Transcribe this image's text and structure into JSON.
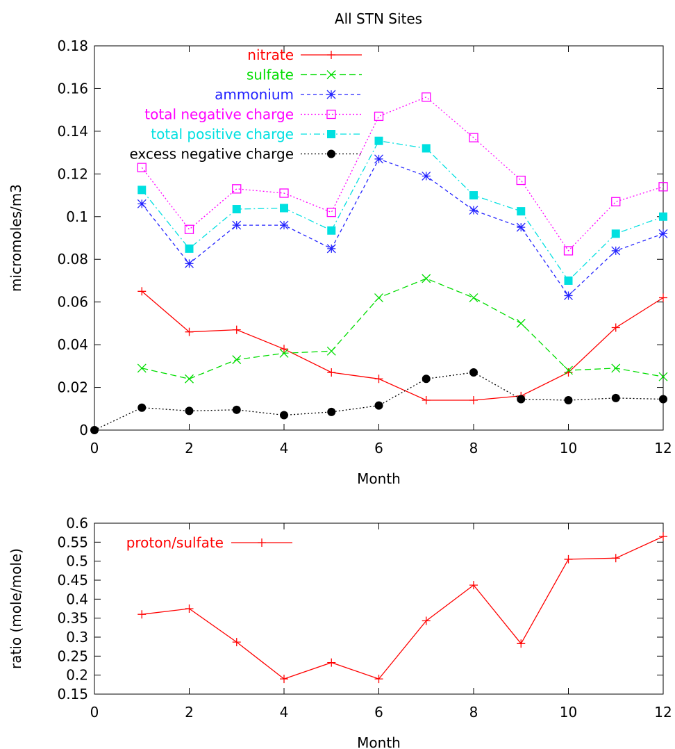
{
  "chart_data": [
    {
      "type": "line",
      "title": "All STN Sites",
      "xlabel": "Month",
      "ylabel": "micromoles/m3",
      "xlim": [
        0,
        12
      ],
      "ylim": [
        0,
        0.18
      ],
      "xticks": [
        0,
        2,
        4,
        6,
        8,
        10,
        12
      ],
      "yticks": [
        0,
        0.02,
        0.04,
        0.06,
        0.08,
        0.1,
        0.12,
        0.14,
        0.16,
        0.18
      ],
      "grid": false,
      "legend_position": "top-left",
      "series": [
        {
          "name": "nitrate",
          "color": "#ff0000",
          "dash": "solid",
          "marker": "plus",
          "points": [
            [
              1,
              0.065
            ],
            [
              2,
              0.046
            ],
            [
              3,
              0.047
            ],
            [
              4,
              0.038
            ],
            [
              5,
              0.027
            ],
            [
              6,
              0.024
            ],
            [
              7,
              0.014
            ],
            [
              8,
              0.014
            ],
            [
              9,
              0.016
            ],
            [
              10,
              0.027
            ],
            [
              11,
              0.048
            ],
            [
              12,
              0.062
            ]
          ]
        },
        {
          "name": "sulfate",
          "color": "#00dd00",
          "dash": "dashed",
          "marker": "cross",
          "points": [
            [
              1,
              0.029
            ],
            [
              2,
              0.024
            ],
            [
              3,
              0.033
            ],
            [
              4,
              0.036
            ],
            [
              5,
              0.037
            ],
            [
              6,
              0.062
            ],
            [
              7,
              0.071
            ],
            [
              8,
              0.062
            ],
            [
              9,
              0.05
            ],
            [
              10,
              0.028
            ],
            [
              11,
              0.029
            ],
            [
              12,
              0.025
            ]
          ]
        },
        {
          "name": "ammonium",
          "color": "#2222ff",
          "dash": "short-dashed",
          "marker": "star",
          "points": [
            [
              1,
              0.106
            ],
            [
              2,
              0.078
            ],
            [
              3,
              0.096
            ],
            [
              4,
              0.096
            ],
            [
              5,
              0.085
            ],
            [
              6,
              0.127
            ],
            [
              7,
              0.119
            ],
            [
              8,
              0.103
            ],
            [
              9,
              0.095
            ],
            [
              10,
              0.063
            ],
            [
              11,
              0.084
            ],
            [
              12,
              0.092
            ]
          ]
        },
        {
          "name": "total negative charge",
          "color": "#ff00ff",
          "dash": "dotted",
          "marker": "open-square",
          "points": [
            [
              1,
              0.123
            ],
            [
              2,
              0.094
            ],
            [
              3,
              0.113
            ],
            [
              4,
              0.111
            ],
            [
              5,
              0.102
            ],
            [
              6,
              0.147
            ],
            [
              7,
              0.156
            ],
            [
              8,
              0.137
            ],
            [
              9,
              0.117
            ],
            [
              10,
              0.084
            ],
            [
              11,
              0.107
            ],
            [
              12,
              0.114
            ]
          ]
        },
        {
          "name": "total positive charge",
          "color": "#00e0e0",
          "dash": "dash-dot",
          "marker": "filled-square",
          "points": [
            [
              1,
              0.1125
            ],
            [
              2,
              0.085
            ],
            [
              3,
              0.1035
            ],
            [
              4,
              0.104
            ],
            [
              5,
              0.0935
            ],
            [
              6,
              0.1355
            ],
            [
              7,
              0.132
            ],
            [
              8,
              0.11
            ],
            [
              9,
              0.1025
            ],
            [
              10,
              0.07
            ],
            [
              11,
              0.092
            ],
            [
              12,
              0.1
            ]
          ]
        },
        {
          "name": "excess negative charge",
          "color": "#000000",
          "dash": "dotted",
          "marker": "filled-circle",
          "points": [
            [
              0,
              0
            ],
            [
              1,
              0.0105
            ],
            [
              2,
              0.009
            ],
            [
              3,
              0.0095
            ],
            [
              4,
              0.007
            ],
            [
              5,
              0.0085
            ],
            [
              6,
              0.0115
            ],
            [
              7,
              0.024
            ],
            [
              8,
              0.027
            ],
            [
              9,
              0.0145
            ],
            [
              10,
              0.014
            ],
            [
              11,
              0.015
            ],
            [
              12,
              0.0145
            ]
          ]
        }
      ]
    },
    {
      "type": "line",
      "title": "",
      "xlabel": "Month",
      "ylabel": "ratio (mole/mole)",
      "xlim": [
        0,
        12
      ],
      "ylim": [
        0.15,
        0.6
      ],
      "xticks": [
        0,
        2,
        4,
        6,
        8,
        10,
        12
      ],
      "yticks": [
        0.15,
        0.2,
        0.25,
        0.3,
        0.35,
        0.4,
        0.45,
        0.5,
        0.55,
        0.6
      ],
      "grid": false,
      "legend_position": "top-left",
      "series": [
        {
          "name": "proton/sulfate",
          "color": "#ff0000",
          "dash": "solid",
          "marker": "plus",
          "points": [
            [
              1,
              0.36
            ],
            [
              2,
              0.375
            ],
            [
              3,
              0.287
            ],
            [
              4,
              0.19
            ],
            [
              5,
              0.233
            ],
            [
              6,
              0.19
            ],
            [
              7,
              0.343
            ],
            [
              8,
              0.437
            ],
            [
              9,
              0.283
            ],
            [
              10,
              0.505
            ],
            [
              11,
              0.508
            ],
            [
              12,
              0.565
            ]
          ]
        }
      ]
    }
  ]
}
